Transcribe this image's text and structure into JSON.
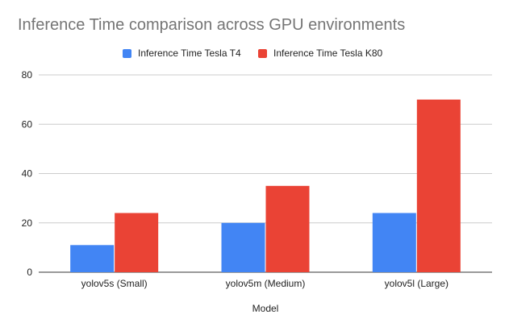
{
  "chart_data": {
    "type": "bar",
    "title": "Inference Time comparison across GPU environments",
    "xlabel": "Model",
    "ylabel": "",
    "categories": [
      "yolov5s (Small)",
      "yolov5m (Medium)",
      "yolov5l (Large)"
    ],
    "series": [
      {
        "name": "Inference Time Tesla T4",
        "color": "#4285f4",
        "values": [
          11,
          20,
          24
        ]
      },
      {
        "name": "Inference Time Tesla K80",
        "color": "#ea4335",
        "values": [
          24,
          35,
          70
        ]
      }
    ],
    "ylim": [
      0,
      80
    ],
    "yticks": [
      0,
      20,
      40,
      60,
      80
    ],
    "grid": true,
    "legend": "top-center"
  }
}
